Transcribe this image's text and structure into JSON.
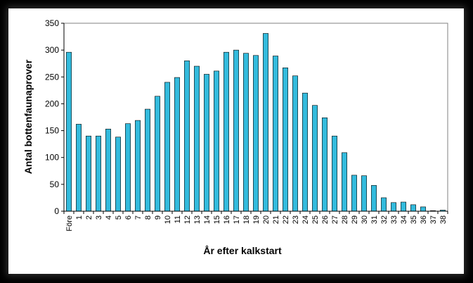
{
  "chart_data": {
    "type": "bar",
    "title": "",
    "xlabel": "År efter kalkstart",
    "ylabel": "Antal bottenfaunaprover",
    "ylim": [
      0,
      350
    ],
    "yticks": [
      0,
      50,
      100,
      150,
      200,
      250,
      300,
      350
    ],
    "grid": false,
    "legend": "none",
    "bar_color": "#33bbdd",
    "bar_edge_color": "#000000",
    "categories": [
      "Före",
      "1",
      "2",
      "3",
      "4",
      "5",
      "6",
      "7",
      "8",
      "9",
      "10",
      "11",
      "12",
      "13",
      "14",
      "15",
      "16",
      "17",
      "18",
      "19",
      "20",
      "21",
      "22",
      "23",
      "24",
      "25",
      "26",
      "27",
      "28",
      "29",
      "30",
      "31",
      "32",
      "33",
      "34",
      "35",
      "36",
      "37",
      "38"
    ],
    "values": [
      296,
      162,
      140,
      140,
      153,
      138,
      163,
      169,
      190,
      214,
      240,
      249,
      280,
      270,
      255,
      261,
      296,
      300,
      294,
      290,
      331,
      289,
      267,
      252,
      220,
      197,
      174,
      140,
      109,
      67,
      66,
      48,
      25,
      16,
      17,
      12,
      8,
      1,
      2
    ]
  }
}
